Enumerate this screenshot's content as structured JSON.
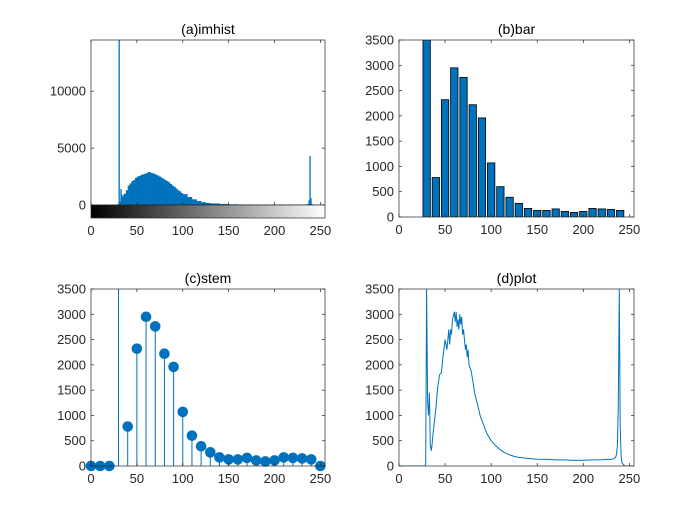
{
  "colors": {
    "accent": "#0072bd",
    "axis": "#262626",
    "background": "#ffffff"
  },
  "chart_data": [
    {
      "type": "histogram",
      "title": "(a)imhist",
      "xlim": [
        0,
        255
      ],
      "ylim": [
        0,
        14500
      ],
      "xticks": [
        0,
        50,
        100,
        150,
        200,
        250
      ],
      "yticks": [
        0,
        5000,
        10000
      ],
      "has_grayscale_colorbar": true,
      "x": [
        0,
        5,
        10,
        15,
        20,
        25,
        28,
        29,
        30,
        31,
        32,
        33,
        34,
        35,
        36,
        38,
        40,
        42,
        44,
        46,
        48,
        50,
        52,
        54,
        56,
        58,
        60,
        62,
        64,
        66,
        68,
        70,
        72,
        74,
        76,
        78,
        80,
        82,
        84,
        86,
        88,
        90,
        92,
        94,
        96,
        98,
        100,
        105,
        110,
        115,
        120,
        125,
        130,
        140,
        150,
        160,
        170,
        180,
        190,
        200,
        210,
        220,
        230,
        235,
        237,
        238,
        239,
        240,
        241,
        242,
        245,
        250,
        255
      ],
      "values": [
        0,
        0,
        0,
        0,
        0,
        0,
        0,
        100,
        14500,
        300,
        1400,
        900,
        700,
        900,
        1000,
        1300,
        1700,
        1900,
        2100,
        2200,
        2400,
        2500,
        2550,
        2650,
        2700,
        2750,
        2800,
        2900,
        2850,
        2800,
        2750,
        2650,
        2600,
        2500,
        2400,
        2300,
        2200,
        2100,
        2000,
        1850,
        1700,
        1600,
        1450,
        1300,
        1200,
        1050,
        950,
        700,
        500,
        350,
        250,
        180,
        140,
        90,
        60,
        40,
        30,
        20,
        15,
        12,
        10,
        10,
        30,
        80,
        400,
        4300,
        600,
        100,
        30,
        0,
        0,
        0,
        0
      ]
    },
    {
      "type": "bar",
      "title": "(b)bar",
      "xlim": [
        0,
        255
      ],
      "ylim": [
        0,
        3500
      ],
      "xticks": [
        0,
        50,
        100,
        150,
        200,
        250
      ],
      "yticks": [
        0,
        500,
        1000,
        1500,
        2000,
        2500,
        3000,
        3500
      ],
      "x": [
        0,
        10,
        20,
        30,
        40,
        50,
        60,
        70,
        80,
        90,
        100,
        110,
        120,
        130,
        140,
        150,
        160,
        170,
        180,
        190,
        200,
        210,
        220,
        230,
        240,
        250
      ],
      "values": [
        0,
        0,
        0,
        3500,
        780,
        2320,
        2950,
        2760,
        2220,
        1960,
        1070,
        600,
        390,
        270,
        170,
        130,
        130,
        160,
        110,
        90,
        110,
        170,
        160,
        150,
        130,
        0
      ]
    },
    {
      "type": "stem",
      "title": "(c)stem",
      "xlim": [
        0,
        255
      ],
      "ylim": [
        0,
        3500
      ],
      "xticks": [
        0,
        50,
        100,
        150,
        200,
        250
      ],
      "yticks": [
        0,
        500,
        1000,
        1500,
        2000,
        2500,
        3000,
        3500
      ],
      "x": [
        0,
        10,
        20,
        30,
        40,
        50,
        60,
        70,
        80,
        90,
        100,
        110,
        120,
        130,
        140,
        150,
        160,
        170,
        180,
        190,
        200,
        210,
        220,
        230,
        240,
        250
      ],
      "values": [
        0,
        0,
        0,
        3500,
        780,
        2320,
        2950,
        2760,
        2220,
        1960,
        1070,
        600,
        390,
        270,
        170,
        130,
        130,
        160,
        110,
        90,
        110,
        170,
        160,
        150,
        130,
        0
      ]
    },
    {
      "type": "line",
      "title": "(d)plot",
      "xlim": [
        0,
        255
      ],
      "ylim": [
        0,
        3500
      ],
      "xticks": [
        0,
        50,
        100,
        150,
        200,
        250
      ],
      "yticks": [
        0,
        500,
        1000,
        1500,
        2000,
        2500,
        3000,
        3500
      ],
      "x": [
        0,
        10,
        20,
        25,
        28,
        29,
        30,
        31,
        32,
        33,
        34,
        35,
        36,
        37,
        38,
        40,
        42,
        44,
        46,
        48,
        50,
        52,
        54,
        55,
        56,
        57,
        58,
        60,
        61,
        62,
        63,
        64,
        65,
        66,
        67,
        68,
        69,
        70,
        72,
        73,
        74,
        75,
        76,
        78,
        80,
        82,
        84,
        86,
        88,
        90,
        92,
        94,
        96,
        98,
        100,
        105,
        110,
        115,
        120,
        125,
        130,
        140,
        150,
        160,
        170,
        180,
        190,
        200,
        210,
        220,
        225,
        230,
        233,
        235,
        236,
        237,
        238,
        239,
        240,
        241,
        242,
        245,
        250,
        255
      ],
      "values": [
        0,
        0,
        0,
        0,
        0,
        50,
        3500,
        1300,
        1000,
        1450,
        400,
        300,
        450,
        650,
        800,
        1150,
        1550,
        1800,
        1850,
        2200,
        2500,
        2300,
        2700,
        2400,
        2700,
        2600,
        2900,
        3050,
        2850,
        3050,
        2750,
        2900,
        2700,
        3000,
        2800,
        2950,
        2600,
        2700,
        2300,
        2400,
        2150,
        2300,
        2000,
        1900,
        1700,
        1450,
        1300,
        1150,
        1000,
        900,
        800,
        700,
        620,
        560,
        500,
        400,
        320,
        260,
        220,
        190,
        170,
        150,
        135,
        130,
        120,
        120,
        110,
        115,
        120,
        125,
        130,
        130,
        145,
        170,
        230,
        400,
        1200,
        3500,
        800,
        200,
        60,
        0,
        0,
        0
      ]
    }
  ]
}
